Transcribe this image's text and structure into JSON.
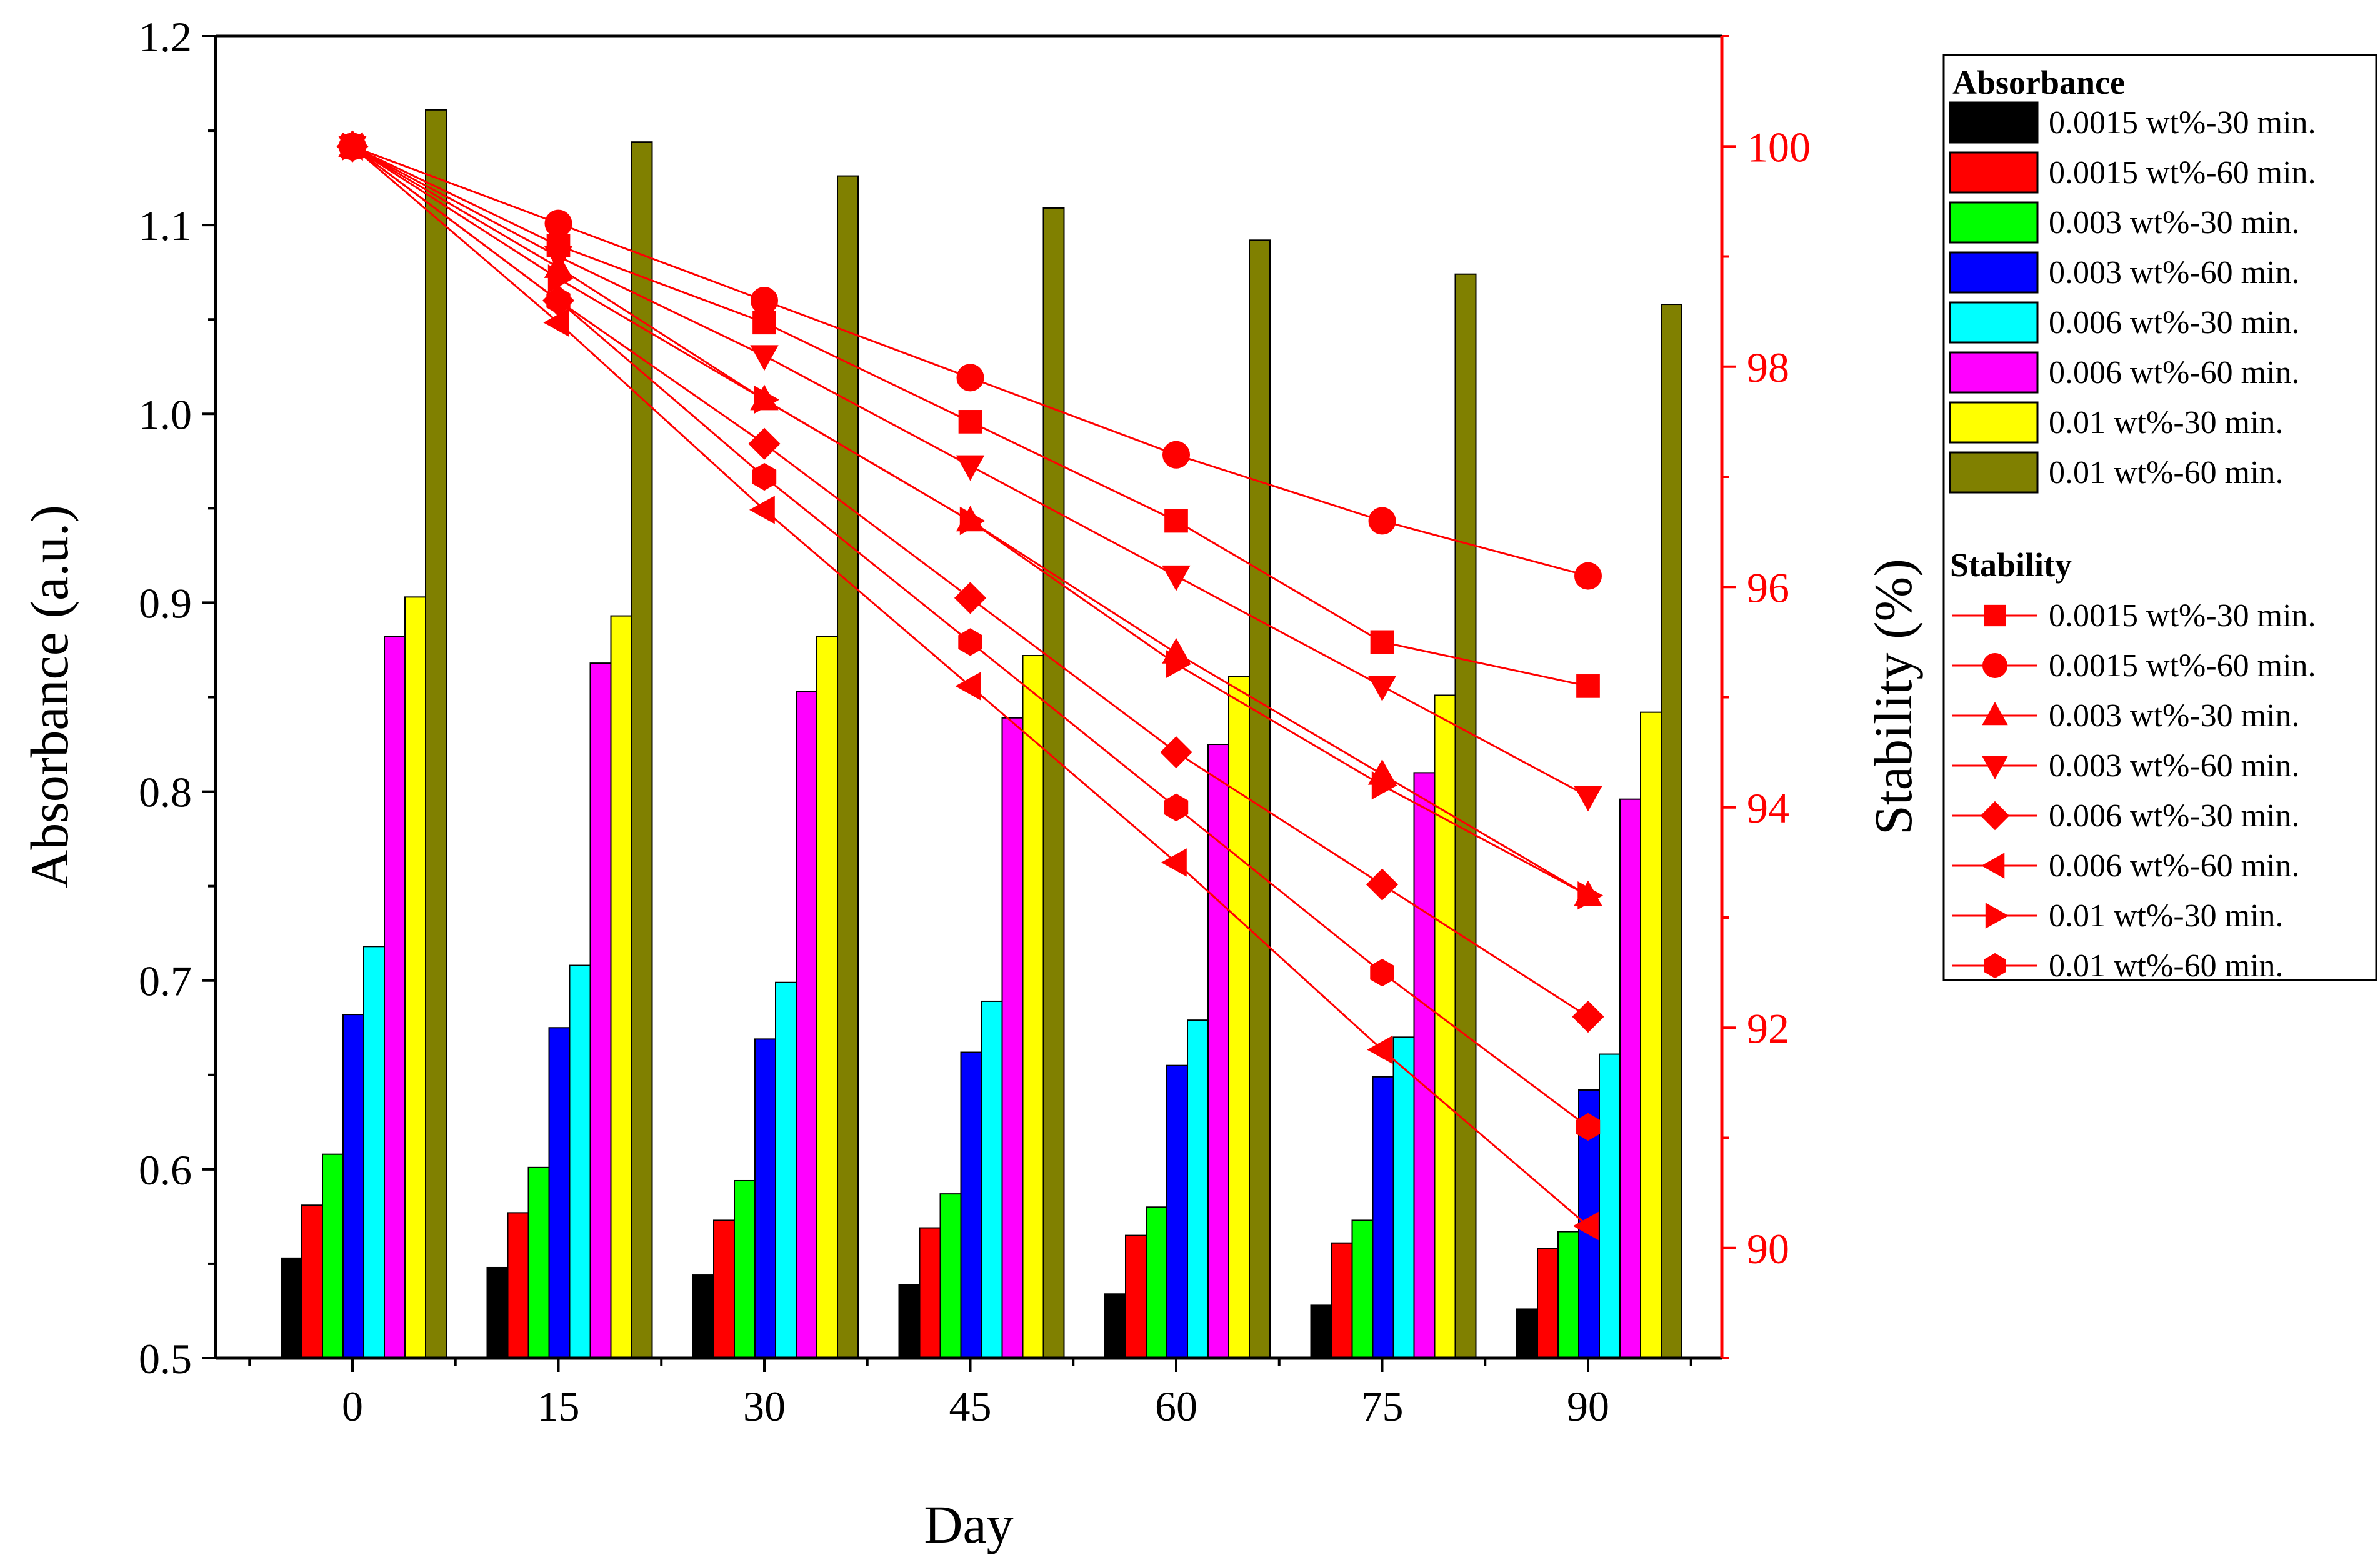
{
  "chart_data": {
    "type": "bar+line",
    "title": "",
    "xlabel": "Day",
    "ylabel_left": "Absorbance (a.u.)",
    "ylabel_right": "Stability (%)",
    "categories": [
      "0",
      "15",
      "30",
      "45",
      "60",
      "75",
      "90"
    ],
    "x_values": [
      0,
      15,
      30,
      45,
      60,
      75,
      90
    ],
    "ylim_left": [
      0.5,
      1.2
    ],
    "yticks_left": [
      "0.5",
      "0.6",
      "0.7",
      "0.8",
      "0.9",
      "1.0",
      "1.1",
      "1.2"
    ],
    "ylim_right": [
      89,
      101
    ],
    "yticks_right": [
      "90",
      "92",
      "94",
      "96",
      "98",
      "100"
    ],
    "legend_title_bars": "Absorbance",
    "legend_title_lines": "Stability",
    "legend_position": "right, outside plot",
    "colors": {
      "axis_right": "#ff0000",
      "line": "#ff0000"
    },
    "bar_series": [
      {
        "name": "0.0015 wt%-30 min.",
        "color": "#000000",
        "values": [
          0.553,
          0.548,
          0.544,
          0.539,
          0.534,
          0.528,
          0.526
        ]
      },
      {
        "name": "0.0015 wt%-60 min.",
        "color": "#ff0000",
        "values": [
          0.581,
          0.577,
          0.573,
          0.569,
          0.565,
          0.561,
          0.558
        ]
      },
      {
        "name": "0.003 wt%-30 min.",
        "color": "#00ff00",
        "values": [
          0.608,
          0.601,
          0.594,
          0.587,
          0.58,
          0.573,
          0.567
        ]
      },
      {
        "name": "0.003 wt%-60 min.",
        "color": "#0000ff",
        "values": [
          0.682,
          0.675,
          0.669,
          0.662,
          0.655,
          0.649,
          0.642
        ]
      },
      {
        "name": "0.006 wt%-30 min.",
        "color": "#00ffff",
        "values": [
          0.718,
          0.708,
          0.699,
          0.689,
          0.679,
          0.67,
          0.661
        ]
      },
      {
        "name": "0.006 wt%-60 min.",
        "color": "#ff00ff",
        "values": [
          0.882,
          0.868,
          0.853,
          0.839,
          0.825,
          0.81,
          0.796
        ]
      },
      {
        "name": "0.01 wt%-30 min.",
        "color": "#ffff00",
        "values": [
          0.903,
          0.893,
          0.882,
          0.872,
          0.861,
          0.851,
          0.842
        ]
      },
      {
        "name": "0.01 wt%-60 min.",
        "color": "#808000",
        "values": [
          1.161,
          1.144,
          1.126,
          1.109,
          1.092,
          1.074,
          1.058
        ]
      }
    ],
    "line_series": [
      {
        "name": "0.0015 wt%-30 min.",
        "marker": "square",
        "values": [
          100,
          99.1,
          98.4,
          97.5,
          96.6,
          95.5,
          95.1
        ]
      },
      {
        "name": "0.0015 wt%-60 min.",
        "marker": "circle",
        "values": [
          100,
          99.3,
          98.6,
          97.9,
          97.2,
          96.6,
          96.1
        ]
      },
      {
        "name": "0.003 wt%-30 min.",
        "marker": "triangle-up",
        "values": [
          100,
          98.9,
          97.7,
          96.6,
          95.4,
          94.3,
          93.2
        ]
      },
      {
        "name": "0.003 wt%-60 min.",
        "marker": "triangle-down",
        "values": [
          100,
          99.0,
          98.1,
          97.1,
          96.1,
          95.1,
          94.1
        ]
      },
      {
        "name": "0.006 wt%-30 min.",
        "marker": "diamond",
        "values": [
          100,
          98.6,
          97.3,
          95.9,
          94.5,
          93.3,
          92.1
        ]
      },
      {
        "name": "0.006 wt%-60 min.",
        "marker": "triangle-left",
        "values": [
          100,
          98.4,
          96.7,
          95.1,
          93.5,
          91.8,
          90.2
        ]
      },
      {
        "name": "0.01 wt%-30 min.",
        "marker": "triangle-right",
        "values": [
          100,
          98.8,
          97.7,
          96.6,
          95.3,
          94.2,
          93.2
        ]
      },
      {
        "name": "0.01 wt%-60 min.",
        "marker": "hexagon",
        "values": [
          100,
          98.6,
          97.0,
          95.5,
          94.0,
          92.5,
          91.1
        ]
      }
    ]
  }
}
